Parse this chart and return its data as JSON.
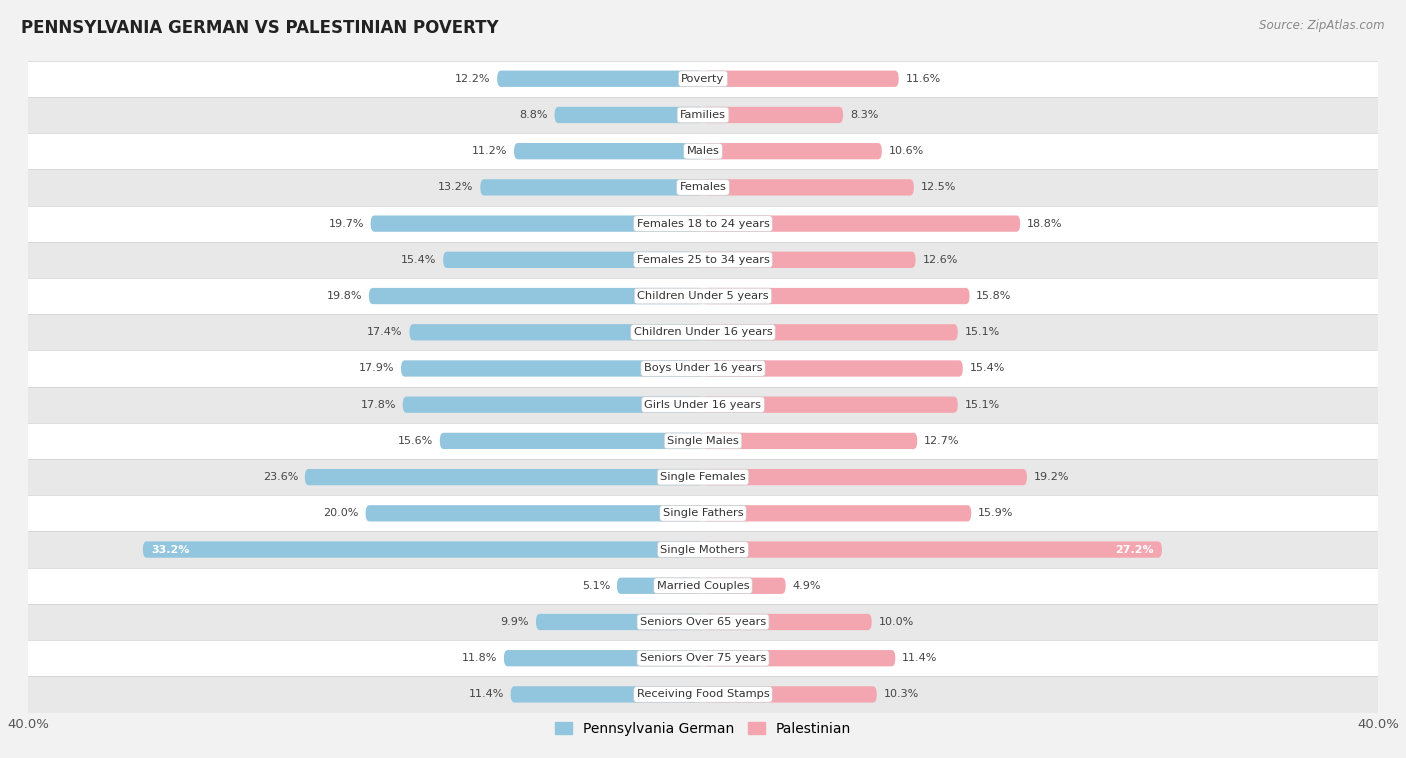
{
  "title": "PENNSYLVANIA GERMAN VS PALESTINIAN POVERTY",
  "source": "Source: ZipAtlas.com",
  "categories": [
    "Poverty",
    "Families",
    "Males",
    "Females",
    "Females 18 to 24 years",
    "Females 25 to 34 years",
    "Children Under 5 years",
    "Children Under 16 years",
    "Boys Under 16 years",
    "Girls Under 16 years",
    "Single Males",
    "Single Females",
    "Single Fathers",
    "Single Mothers",
    "Married Couples",
    "Seniors Over 65 years",
    "Seniors Over 75 years",
    "Receiving Food Stamps"
  ],
  "penn_german": [
    12.2,
    8.8,
    11.2,
    13.2,
    19.7,
    15.4,
    19.8,
    17.4,
    17.9,
    17.8,
    15.6,
    23.6,
    20.0,
    33.2,
    5.1,
    9.9,
    11.8,
    11.4
  ],
  "palestinian": [
    11.6,
    8.3,
    10.6,
    12.5,
    18.8,
    12.6,
    15.8,
    15.1,
    15.4,
    15.1,
    12.7,
    19.2,
    15.9,
    27.2,
    4.9,
    10.0,
    11.4,
    10.3
  ],
  "penn_color": "#92c5de",
  "pales_color": "#f4a6b0",
  "bg_color": "#f2f2f2",
  "row_color_white": "#ffffff",
  "row_color_gray": "#e8e8e8",
  "sep_color": "#d0d0d0",
  "xlim": 40.0,
  "legend_penn": "Pennsylvania German",
  "legend_pales": "Palestinian"
}
